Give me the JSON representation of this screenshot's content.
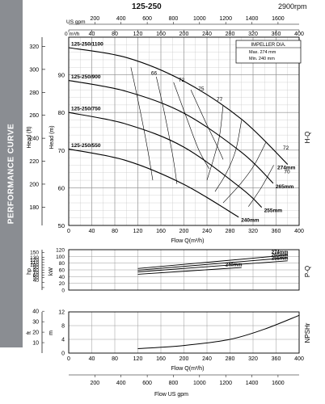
{
  "header": {
    "model": "125-250",
    "speed": "2900rpm"
  },
  "sidebar_label": "PERFORMANCE CURVE",
  "legend": {
    "title": "IMPELLER DIA.",
    "max": "Max.  274  mm",
    "min": "Min.   240  mm"
  },
  "chart_data": [
    {
      "type": "line",
      "name": "H-Q",
      "axis_right_label": "H-Q",
      "xlabel": "Flow  Q(m³/h)",
      "ylabel_m": "Head (m)",
      "ylabel_ft": "Head (ft)",
      "top_axis_m3h_label": "0  m³/h",
      "top_axis_usgpm_label": "US gpm",
      "xlim": [
        0,
        400
      ],
      "ylim": [
        50,
        100
      ],
      "x_ticks": [
        0,
        40,
        80,
        120,
        160,
        200,
        240,
        280,
        320,
        360,
        400
      ],
      "y_ticks": [
        50,
        60,
        70,
        80,
        90
      ],
      "ft_ticks": [
        180,
        200,
        220,
        240,
        260,
        280,
        300,
        320
      ],
      "usgpm_ticks": [
        200,
        400,
        600,
        800,
        1000,
        1200,
        1400,
        1600
      ],
      "series": [
        {
          "name": "125-250/1100",
          "end_label": "274mm",
          "x": [
            0,
            100,
            200,
            300,
            380
          ],
          "y": [
            97.2,
            94.6,
            88.3,
            78.2,
            66.2
          ]
        },
        {
          "name": "125-250/900",
          "end_label": "265mm",
          "x": [
            0,
            100,
            200,
            300,
            355
          ],
          "y": [
            88.5,
            85.6,
            79.8,
            69.4,
            61.2
          ]
        },
        {
          "name": "125-250/750",
          "end_label": "255mm",
          "x": [
            0,
            100,
            200,
            300,
            335
          ],
          "y": [
            80.0,
            76.9,
            70.8,
            59.8,
            54.8
          ]
        },
        {
          "name": "125-250/550",
          "end_label": "240mm",
          "x": [
            0,
            100,
            200,
            295
          ],
          "y": [
            70.3,
            67.2,
            60.9,
            52.2
          ]
        }
      ],
      "efficiency_labels": [
        {
          "text": "66",
          "x": 148,
          "y": 90.0
        },
        {
          "text": "72",
          "x": 196,
          "y": 88.2
        },
        {
          "text": "75",
          "x": 230,
          "y": 85.8
        },
        {
          "text": "77",
          "x": 262,
          "y": 83.0
        },
        {
          "text": "72",
          "x": 377,
          "y": 70.2
        },
        {
          "text": "70",
          "x": 379,
          "y": 63.8
        }
      ]
    },
    {
      "type": "line",
      "name": "P-Q",
      "axis_right_label": "P-Q",
      "ylabel_kw": "kW",
      "ylabel_hp": "hp",
      "xlim": [
        0,
        400
      ],
      "ylim": [
        0,
        120
      ],
      "y_ticks": [
        0,
        20,
        40,
        60,
        80,
        100,
        120
      ],
      "hp_ticks": [
        10,
        30,
        50,
        60,
        70,
        80,
        90,
        100,
        110,
        120,
        130,
        150
      ],
      "x_ticks": [
        0,
        40,
        80,
        120,
        160,
        200,
        240,
        280,
        320,
        360,
        400
      ],
      "series": [
        {
          "end_label": "274mm",
          "x": [
            120,
            380
          ],
          "y": [
            64,
            104
          ]
        },
        {
          "end_label": "265mm",
          "x": [
            120,
            380
          ],
          "y": [
            59,
            96
          ]
        },
        {
          "end_label": "255mm",
          "x": [
            120,
            380
          ],
          "y": [
            54,
            87
          ]
        },
        {
          "end_label": "240mm",
          "x": [
            120,
            300
          ],
          "y": [
            47,
            67
          ]
        }
      ]
    },
    {
      "type": "line",
      "name": "NPSHr",
      "axis_right_label": "NPSHr",
      "ylabel_m": "m",
      "ylabel_ft": "ft",
      "xlabel": "Flow  Q(m³/h)",
      "xlabel_bottom": "Flow  US gpm",
      "xlim": [
        0,
        400
      ],
      "ylim": [
        0,
        12
      ],
      "y_ticks": [
        0,
        4,
        8,
        12
      ],
      "ft_ticks": [
        10,
        20,
        30,
        40
      ],
      "x_ticks": [
        0,
        40,
        80,
        120,
        160,
        200,
        240,
        280,
        320,
        360,
        400
      ],
      "usgpm_ticks": [
        200,
        400,
        600,
        800,
        1000,
        1200,
        1400,
        1600
      ],
      "series": [
        {
          "x": [
            120,
            200,
            280,
            340,
            400
          ],
          "y": [
            1.3,
            2.2,
            4.0,
            7.0,
            11.0
          ]
        }
      ]
    }
  ]
}
